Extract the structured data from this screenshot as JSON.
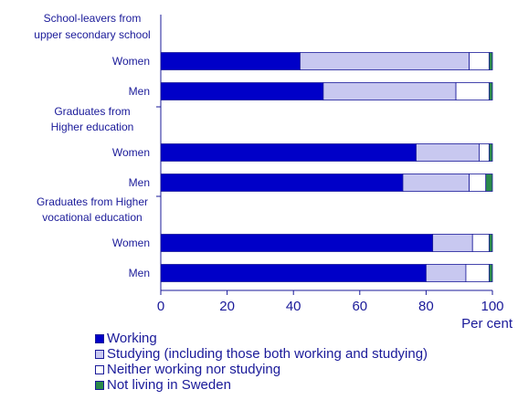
{
  "chart_data": {
    "type": "bar",
    "orientation": "horizontal",
    "stacked": true,
    "groups": [
      {
        "label": "School-leavers from upper secondary school",
        "label_lines": [
          "School-leavers from",
          "upper secondary school"
        ],
        "rows": [
          {
            "label": "Women",
            "values": [
              42,
              51,
              6,
              1
            ]
          },
          {
            "label": "Men",
            "values": [
              49,
              40,
              10,
              1
            ]
          }
        ]
      },
      {
        "label": "Graduates from Higher education",
        "label_lines": [
          "Graduates from",
          "Higher education"
        ],
        "rows": [
          {
            "label": "Women",
            "values": [
              77,
              19,
              3,
              1
            ]
          },
          {
            "label": "Men",
            "values": [
              73,
              20,
              5,
              2
            ]
          }
        ]
      },
      {
        "label": "Graduates from Higher vocational education",
        "label_lines": [
          "Graduates from Higher",
          "vocational education"
        ],
        "rows": [
          {
            "label": "Women",
            "values": [
              82,
              12,
              5,
              1
            ]
          },
          {
            "label": "Men",
            "values": [
              80,
              12,
              7,
              1
            ]
          }
        ]
      }
    ],
    "series": [
      {
        "name": "Working",
        "color": "#0000c8"
      },
      {
        "name": "Studying (including those both working and studying)",
        "color": "#c8c8f0"
      },
      {
        "name": "Neither working nor studying",
        "color": "#ffffff"
      },
      {
        "name": "Not living in Sweden",
        "color": "#2a8a4a"
      }
    ],
    "xlim": [
      0,
      100
    ],
    "xticks": [
      0,
      20,
      40,
      60,
      80,
      100
    ],
    "xlabel": "Per cent",
    "legend_position": "bottom",
    "grid": false
  }
}
